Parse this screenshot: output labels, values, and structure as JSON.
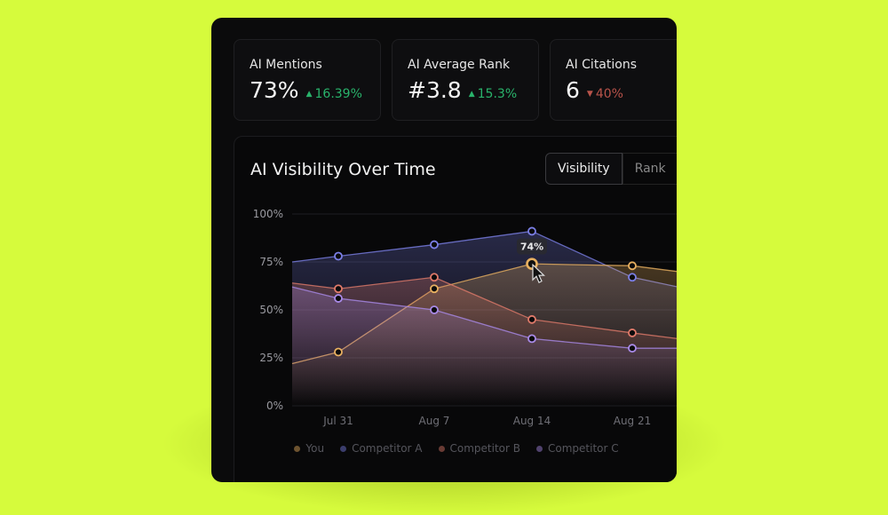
{
  "stats": [
    {
      "label": "AI Mentions",
      "value": "73%",
      "change": "16.39%",
      "direction": "up"
    },
    {
      "label": "AI Average Rank",
      "value": "#3.8",
      "change": "15.3%",
      "direction": "up"
    },
    {
      "label": "AI Citations",
      "value": "6",
      "change": "40%",
      "direction": "down"
    }
  ],
  "chart_title": "AI Visibility Over Time",
  "toggle": {
    "options": [
      "Visibility",
      "Rank"
    ],
    "selected": "Visibility"
  },
  "tooltip": "74%",
  "colors": {
    "up": "#29b36b",
    "down": "#b8534a",
    "background": "#d6fb3c"
  },
  "chart_data": {
    "type": "area",
    "categories": [
      "Jul 31",
      "Aug 7",
      "Aug 14",
      "Aug 21"
    ],
    "y_ticks": [
      "0%",
      "25%",
      "50%",
      "75%",
      "100%"
    ],
    "ylim": [
      0,
      100
    ],
    "grid": true,
    "legend_placement": "bottom",
    "series": [
      {
        "name": "You",
        "color": "#e8b060",
        "values": [
          28,
          61,
          74,
          73
        ]
      },
      {
        "name": "Competitor A",
        "color": "#7b7fe6",
        "values": [
          78,
          84,
          91,
          67
        ]
      },
      {
        "name": "Competitor B",
        "color": "#e07a6a",
        "values": [
          61,
          67,
          45,
          38
        ]
      },
      {
        "name": "Competitor C",
        "color": "#a98ae8",
        "values": [
          56,
          50,
          35,
          30
        ]
      }
    ]
  }
}
